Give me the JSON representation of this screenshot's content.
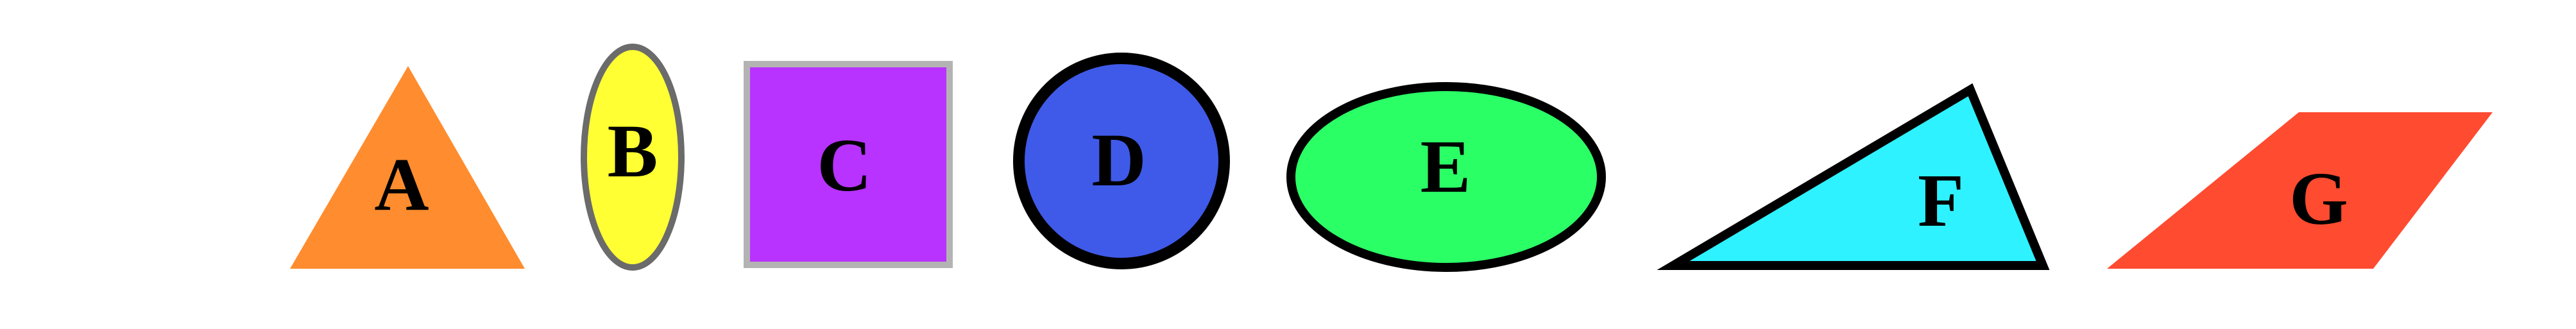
{
  "shapes": [
    {
      "id": "A",
      "label": "A",
      "shape": "triangle",
      "fill": "#ff8c2e",
      "stroke": "none"
    },
    {
      "id": "B",
      "label": "B",
      "shape": "ellipse",
      "fill": "#ffff33",
      "stroke": "#6b6b6b"
    },
    {
      "id": "C",
      "label": "C",
      "shape": "square",
      "fill": "#b833ff",
      "stroke": "#b3b3b3"
    },
    {
      "id": "D",
      "label": "D",
      "shape": "circle",
      "fill": "#3f5ae8",
      "stroke": "#000000"
    },
    {
      "id": "E",
      "label": "E",
      "shape": "ellipse",
      "fill": "#2bff66",
      "stroke": "#000000"
    },
    {
      "id": "F",
      "label": "F",
      "shape": "triangle",
      "fill": "#2ef2ff",
      "stroke": "#000000"
    },
    {
      "id": "G",
      "label": "G",
      "shape": "parallelogram",
      "fill": "#ff4b30",
      "stroke": "none"
    }
  ]
}
